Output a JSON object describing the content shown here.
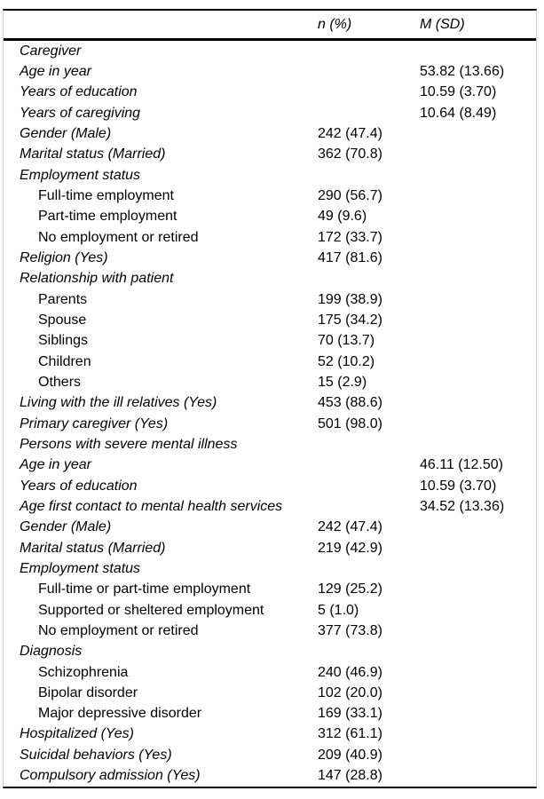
{
  "table": {
    "columns": [
      "",
      "n (%)",
      "M (SD)"
    ],
    "rows": [
      {
        "label": "Caregiver",
        "indent": 0,
        "n": "",
        "m": ""
      },
      {
        "label": "Age in year",
        "indent": 0,
        "n": "",
        "m": "53.82 (13.66)"
      },
      {
        "label": "Years of education",
        "indent": 0,
        "n": "",
        "m": "10.59 (3.70)"
      },
      {
        "label": "Years of caregiving",
        "indent": 0,
        "n": "",
        "m": "10.64 (8.49)"
      },
      {
        "label": "Gender (Male)",
        "indent": 0,
        "n": "242 (47.4)",
        "m": ""
      },
      {
        "label": "Marital status (Married)",
        "indent": 0,
        "n": "362 (70.8)",
        "m": ""
      },
      {
        "label": "Employment status",
        "indent": 0,
        "n": "",
        "m": ""
      },
      {
        "label": "Full-time employment",
        "indent": 1,
        "n": "290 (56.7)",
        "m": ""
      },
      {
        "label": "Part-time employment",
        "indent": 1,
        "n": "49 (9.6)",
        "m": ""
      },
      {
        "label": "No employment or retired",
        "indent": 1,
        "n": "172 (33.7)",
        "m": ""
      },
      {
        "label": "Religion (Yes)",
        "indent": 0,
        "n": "417 (81.6)",
        "m": ""
      },
      {
        "label": "Relationship with patient",
        "indent": 0,
        "n": "",
        "m": ""
      },
      {
        "label": "Parents",
        "indent": 1,
        "n": "199 (38.9)",
        "m": ""
      },
      {
        "label": "Spouse",
        "indent": 1,
        "n": "175 (34.2)",
        "m": ""
      },
      {
        "label": "Siblings",
        "indent": 1,
        "n": "70 (13.7)",
        "m": ""
      },
      {
        "label": "Children",
        "indent": 1,
        "n": "52 (10.2)",
        "m": ""
      },
      {
        "label": "Others",
        "indent": 1,
        "n": "15 (2.9)",
        "m": ""
      },
      {
        "label": "Living with the ill relatives (Yes)",
        "indent": 0,
        "n": "453 (88.6)",
        "m": ""
      },
      {
        "label": "Primary caregiver (Yes)",
        "indent": 0,
        "n": "501 (98.0)",
        "m": ""
      },
      {
        "label": "Persons with severe mental illness",
        "indent": 0,
        "n": "",
        "m": ""
      },
      {
        "label": "Age in year",
        "indent": 0,
        "n": "",
        "m": "46.11 (12.50)"
      },
      {
        "label": "Years of education",
        "indent": 0,
        "n": "",
        "m": "10.59 (3.70)"
      },
      {
        "label": "Age first contact to mental health services",
        "indent": 0,
        "n": "",
        "m": "34.52 (13.36)"
      },
      {
        "label": "Gender (Male)",
        "indent": 0,
        "n": "242 (47.4)",
        "m": ""
      },
      {
        "label": "Marital status (Married)",
        "indent": 0,
        "n": "219 (42.9)",
        "m": ""
      },
      {
        "label": "Employment status",
        "indent": 0,
        "n": "",
        "m": ""
      },
      {
        "label": "Full-time or part-time employment",
        "indent": 1,
        "n": "129 (25.2)",
        "m": ""
      },
      {
        "label": "Supported or sheltered employment",
        "indent": 1,
        "n": "5 (1.0)",
        "m": ""
      },
      {
        "label": "No employment or retired",
        "indent": 1,
        "n": "377 (73.8)",
        "m": ""
      },
      {
        "label": "Diagnosis",
        "indent": 0,
        "n": "",
        "m": ""
      },
      {
        "label": "Schizophrenia",
        "indent": 1,
        "n": "240 (46.9)",
        "m": ""
      },
      {
        "label": "Bipolar disorder",
        "indent": 1,
        "n": "102 (20.0)",
        "m": ""
      },
      {
        "label": "Major depressive disorder",
        "indent": 1,
        "n": "169 (33.1)",
        "m": ""
      },
      {
        "label": "Hospitalized (Yes)",
        "indent": 0,
        "n": "312 (61.1)",
        "m": ""
      },
      {
        "label": "Suicidal behaviors (Yes)",
        "indent": 0,
        "n": "209 (40.9)",
        "m": ""
      },
      {
        "label": "Compulsory admission (Yes)",
        "indent": 0,
        "n": "147 (28.8)",
        "m": ""
      }
    ]
  },
  "colors": {
    "text": "#000000",
    "rule": "#000000",
    "frame_border": "#cccccc",
    "background": "#ffffff"
  }
}
